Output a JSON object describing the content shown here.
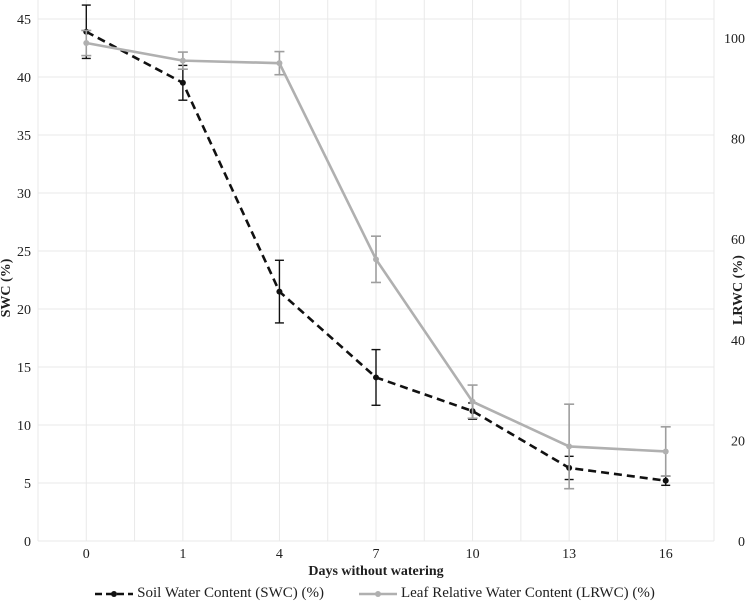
{
  "figure": {
    "background": "#ffffff"
  },
  "chart_data": {
    "type": "line",
    "title": "",
    "xlabel": "Days without watering",
    "x_categories": [
      "0",
      "1",
      "4",
      "7",
      "10",
      "13",
      "16"
    ],
    "left_axis": {
      "label": "SWC (%)",
      "ticks": [
        0,
        5,
        10,
        15,
        20,
        25,
        30,
        35,
        40,
        45
      ],
      "range": [
        0,
        45
      ]
    },
    "right_axis": {
      "label": "LRWC (%)",
      "ticks": [
        0,
        20,
        40,
        60,
        80,
        100
      ],
      "range": [
        0,
        100
      ]
    },
    "grid": {
      "horizontal": true,
      "vertical": true,
      "color": "#e9e9e9"
    },
    "legend_position": "bottom",
    "series": [
      {
        "name": "Soil Water Content (SWC) (%)",
        "axis": "left",
        "line_style": "dashed",
        "color": "#111111",
        "error_color": "#111111",
        "marker": "circle",
        "values": [
          43.9,
          39.5,
          21.5,
          14.1,
          11.2,
          6.3,
          5.2
        ],
        "error_bars": [
          2.3,
          1.5,
          2.7,
          2.4,
          0.7,
          1.0,
          0.4
        ]
      },
      {
        "name": "Leaf Relative Water Content (LRWC) (%)",
        "axis": "right",
        "line_style": "solid",
        "color": "#b0b0b0",
        "error_color": "#9e9e9e",
        "marker": "circle",
        "values": [
          99.0,
          95.5,
          95.0,
          56.0,
          27.7,
          18.8,
          17.8
        ],
        "error_bars": [
          2.5,
          1.7,
          2.3,
          4.6,
          3.3,
          8.4,
          4.9
        ]
      }
    ]
  }
}
